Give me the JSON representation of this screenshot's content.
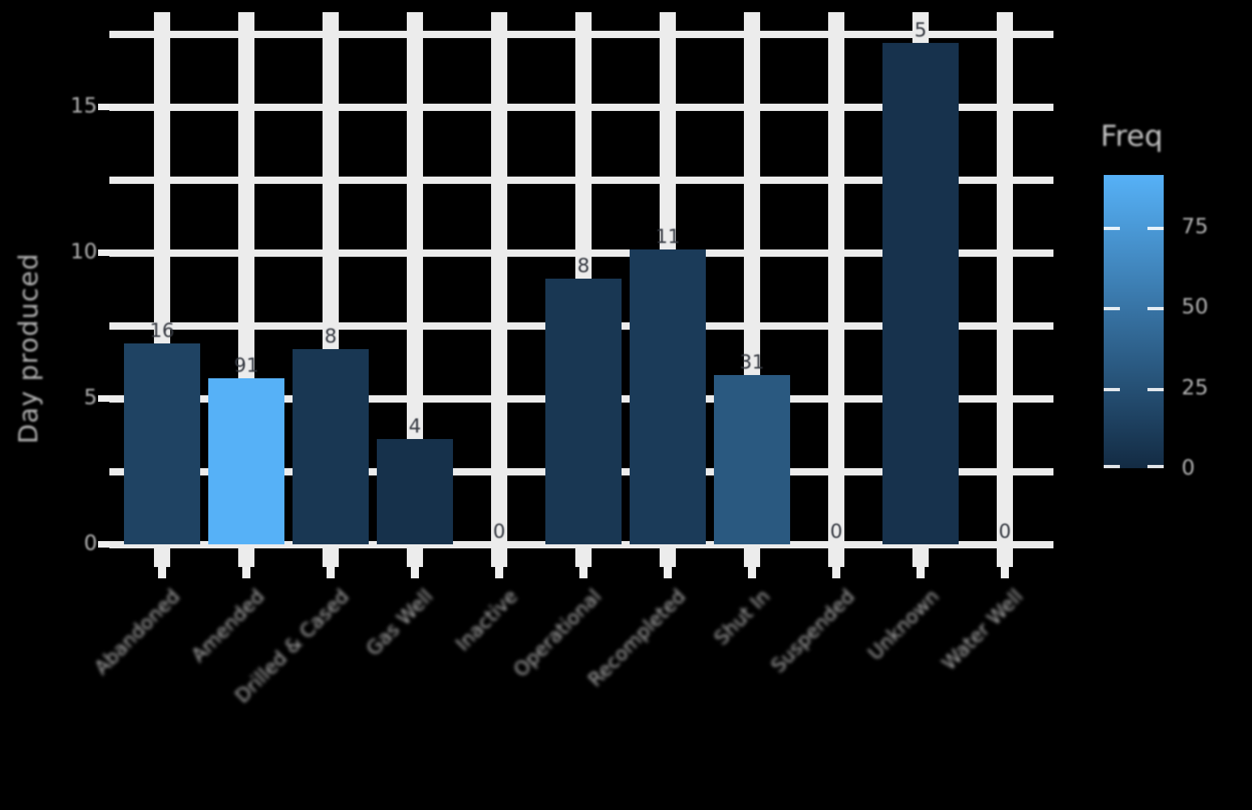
{
  "chart_data": {
    "type": "bar",
    "title": "",
    "xlabel": "",
    "ylabel": "Day produced",
    "legend_title": "Freq",
    "legend_position": "right",
    "grid": true,
    "categories": [
      "Abandoned",
      "Amended",
      "Drilled & Cased",
      "Gas Well",
      "Inactive",
      "Operational",
      "Recompleted",
      "Shut In",
      "Suspended",
      "Unknown",
      "Water Well"
    ],
    "series": [
      {
        "name": "bar_height_day_produced",
        "values": [
          6.9,
          5.7,
          6.7,
          3.6,
          0,
          9.1,
          10.1,
          5.8,
          0,
          17.2,
          0
        ]
      },
      {
        "name": "Freq",
        "values": [
          16,
          91,
          8,
          4,
          0,
          8,
          11,
          31,
          0,
          5,
          0
        ]
      }
    ],
    "bar_value_labels": [
      "16",
      "91",
      "8",
      "4",
      "0",
      "8",
      "11",
      "31",
      "0",
      "5",
      "0"
    ],
    "y_ticks": [
      0,
      5,
      10,
      15
    ],
    "ylim": [
      0,
      19
    ],
    "colorbar": {
      "low_color": "#132B43",
      "high_color": "#56B1F7",
      "domain": [
        0,
        91
      ],
      "ticks": [
        0,
        25,
        50,
        75
      ]
    },
    "colors": {
      "grid": "#ececec",
      "axis_text": "#b3b3b3",
      "bar_label": "#383c44",
      "background": "#000000"
    }
  }
}
